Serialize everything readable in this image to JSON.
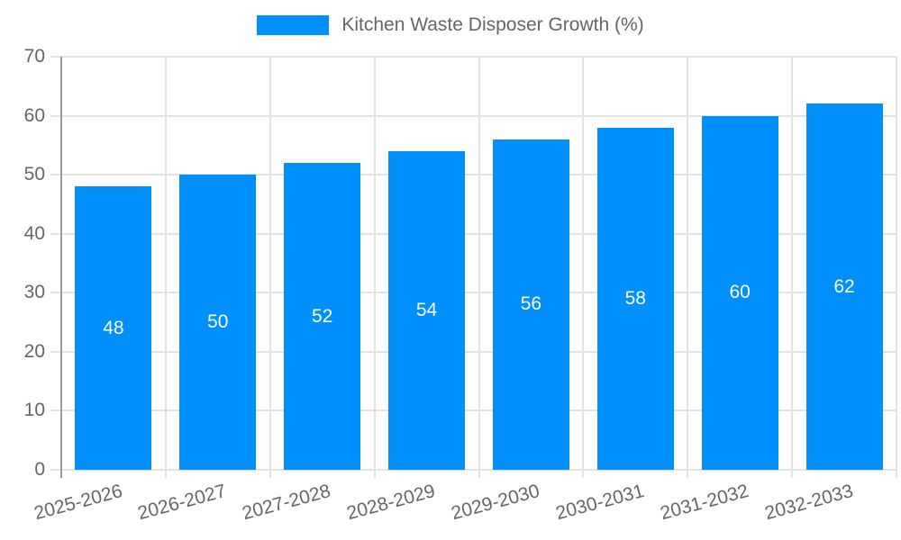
{
  "chart_data": {
    "type": "bar",
    "title": "",
    "legend": [
      "Kitchen Waste Disposer Growth (%)"
    ],
    "legend_position": "top-center",
    "categories": [
      "2025-2026",
      "2026-2027",
      "2027-2028",
      "2028-2029",
      "2029-2030",
      "2030-2031",
      "2031-2032",
      "2032-2033"
    ],
    "values": [
      48,
      50,
      52,
      54,
      56,
      58,
      60,
      62
    ],
    "xlabel": "",
    "ylabel": "",
    "ylim": [
      0,
      70
    ],
    "yticks": [
      0,
      10,
      20,
      30,
      40,
      50,
      60,
      70
    ],
    "grid": true,
    "bar_value_labels": true,
    "x_label_rotation_deg": -15
  },
  "style": {
    "bar_color": "#008FFB",
    "grid_color": "#e3e3e3",
    "axis_line_color": "#9b9b9b",
    "tick_label_color": "#666666",
    "legend_text_color": "#666666",
    "bar_label_color": "#ffffff",
    "background": "#ffffff"
  }
}
